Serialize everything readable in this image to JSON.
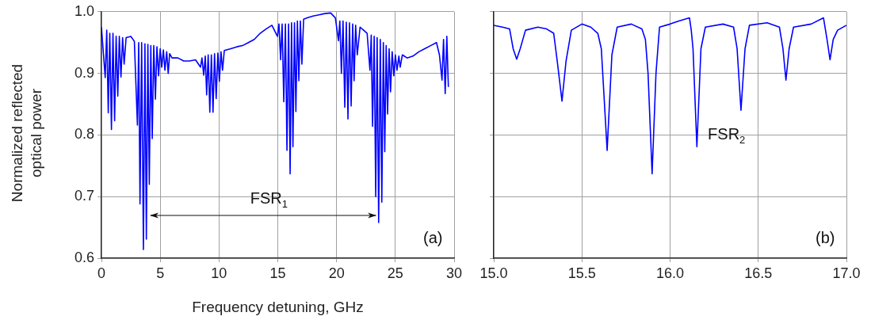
{
  "chart_data": [
    {
      "type": "line",
      "xlabel": "Frequency detuning, GHz",
      "ylabel": "Normalized reflected optical power",
      "xlim": [
        0,
        30
      ],
      "xticks": [
        0,
        5,
        10,
        15,
        20,
        25,
        30
      ],
      "ylim": [
        0.6,
        1.0
      ],
      "yticks": [
        0.6,
        0.7,
        0.8,
        0.9,
        {
          "value": 1.0,
          "label": "1.0"
        }
      ],
      "grid": true,
      "marker": "none",
      "line_style": "solid",
      "annotations": [
        "FSR$_{1}$",
        "(a)"
      ],
      "series": [
        {
          "color": "#0000ff",
          "x": [
            0,
            0.32,
            0.45,
            0.58,
            0.71,
            0.85,
            0.98,
            1.12,
            1.25,
            1.39,
            1.52,
            1.66,
            1.8,
            1.93,
            2.1,
            2.5,
            2.8,
            3.06,
            3.17,
            3.28,
            3.42,
            3.57,
            3.7,
            3.82,
            3.95,
            4.07,
            4.2,
            4.32,
            4.45,
            4.59,
            4.72,
            4.86,
            5.0,
            5.13,
            5.27,
            5.4,
            5.55,
            5.68,
            5.8,
            6.0,
            6.5,
            7.0,
            7.5,
            8.0,
            8.43,
            8.55,
            8.7,
            8.83,
            8.95,
            9.08,
            9.22,
            9.35,
            9.49,
            9.62,
            9.76,
            9.9,
            10.03,
            10.17,
            10.3,
            10.45,
            11,
            11.5,
            12,
            12.5,
            13,
            13.5,
            14,
            14.5,
            14.97,
            15.1,
            15.24,
            15.37,
            15.51,
            15.65,
            15.78,
            15.92,
            16.05,
            16.17,
            16.29,
            16.42,
            16.54,
            16.67,
            16.79,
            16.92,
            17.05,
            17.2,
            17.5,
            18,
            18.5,
            19,
            19.5,
            19.9,
            20.16,
            20.28,
            20.41,
            20.55,
            20.7,
            20.83,
            20.97,
            21.1,
            21.24,
            21.37,
            21.49,
            21.62,
            21.76,
            22,
            22.3,
            22.6,
            22.84,
            22.95,
            23.06,
            23.2,
            23.33,
            23.45,
            23.58,
            23.72,
            23.85,
            23.98,
            24.1,
            24.22,
            24.34,
            24.47,
            24.59,
            24.73,
            24.87,
            25,
            25.14,
            25.3,
            25.41,
            25.6,
            26,
            26.5,
            27,
            27.5,
            28,
            28.5,
            28.75,
            28.97,
            29.1,
            29.24,
            29.38,
            29.51
          ],
          "values": [
            0.975,
            0.893,
            0.97,
            0.836,
            0.965,
            0.809,
            0.965,
            0.823,
            0.96,
            0.863,
            0.96,
            0.894,
            0.958,
            0.915,
            0.958,
            0.96,
            0.952,
            0.816,
            0.95,
            0.688,
            0.95,
            0.614,
            0.948,
            0.631,
            0.947,
            0.72,
            0.945,
            0.794,
            0.945,
            0.858,
            0.943,
            0.896,
            0.94,
            0.91,
            0.938,
            0.905,
            0.935,
            0.9,
            0.932,
            0.925,
            0.925,
            0.92,
            0.92,
            0.922,
            0.91,
            0.925,
            0.897,
            0.928,
            0.865,
            0.93,
            0.837,
            0.93,
            0.837,
            0.932,
            0.859,
            0.933,
            0.887,
            0.935,
            0.905,
            0.937,
            0.94,
            0.943,
            0.945,
            0.95,
            0.955,
            0.965,
            0.972,
            0.978,
            0.96,
            0.98,
            0.922,
            0.98,
            0.854,
            0.98,
            0.775,
            0.98,
            0.737,
            0.982,
            0.781,
            0.982,
            0.838,
            0.985,
            0.888,
            0.985,
            0.915,
            0.988,
            0.99,
            0.993,
            0.995,
            0.997,
            0.998,
            0.99,
            0.953,
            0.985,
            0.9,
            0.985,
            0.845,
            0.983,
            0.826,
            0.982,
            0.847,
            0.98,
            0.888,
            0.978,
            0.93,
            0.975,
            0.97,
            0.965,
            0.905,
            0.962,
            0.814,
            0.96,
            0.7,
            0.958,
            0.658,
            0.955,
            0.691,
            0.95,
            0.773,
            0.945,
            0.834,
            0.94,
            0.87,
            0.935,
            0.896,
            0.93,
            0.905,
            0.928,
            0.91,
            0.93,
            0.925,
            0.928,
            0.935,
            0.94,
            0.945,
            0.95,
            0.93,
            0.889,
            0.955,
            0.867,
            0.96,
            0.878
          ]
        }
      ]
    },
    {
      "type": "line",
      "xlim": [
        15,
        17
      ],
      "xticks": [
        {
          "value": 15,
          "label": "15.0"
        },
        15.5,
        {
          "value": 16,
          "label": "16.0"
        },
        16.5,
        {
          "value": 17,
          "label": "17.0"
        }
      ],
      "ylim": [
        0.6,
        1.0
      ],
      "yticks": [
        0.6,
        0.7,
        0.8,
        0.9,
        1.0
      ],
      "tick_labels": "x",
      "grid": true,
      "marker": "none",
      "line_style": "solid",
      "annotations": [
        "FSR$_{2}$",
        "(b)"
      ],
      "series": [
        {
          "color": "#0000ff",
          "x": [
            15,
            15.05,
            15.09,
            15.11,
            15.13,
            15.15,
            15.18,
            15.25,
            15.3,
            15.34,
            15.36,
            15.387,
            15.41,
            15.44,
            15.5,
            15.55,
            15.59,
            15.61,
            15.643,
            15.67,
            15.7,
            15.78,
            15.84,
            15.86,
            15.875,
            15.898,
            15.92,
            15.94,
            16,
            16.05,
            16.11,
            16.12,
            16.13,
            16.152,
            16.175,
            16.2,
            16.3,
            16.36,
            16.38,
            16.402,
            16.425,
            16.45,
            16.55,
            16.62,
            16.64,
            16.657,
            16.675,
            16.7,
            16.8,
            16.87,
            16.89,
            16.907,
            16.925,
            16.95,
            17.0
          ],
          "values": [
            0.978,
            0.975,
            0.972,
            0.94,
            0.923,
            0.94,
            0.97,
            0.975,
            0.972,
            0.965,
            0.92,
            0.855,
            0.92,
            0.97,
            0.98,
            0.975,
            0.965,
            0.94,
            0.775,
            0.93,
            0.975,
            0.98,
            0.972,
            0.955,
            0.9,
            0.737,
            0.9,
            0.975,
            0.98,
            0.985,
            0.99,
            0.97,
            0.94,
            0.781,
            0.94,
            0.975,
            0.98,
            0.975,
            0.94,
            0.84,
            0.94,
            0.978,
            0.982,
            0.975,
            0.94,
            0.889,
            0.94,
            0.975,
            0.98,
            0.99,
            0.955,
            0.922,
            0.955,
            0.97,
            0.978
          ]
        }
      ]
    }
  ]
}
